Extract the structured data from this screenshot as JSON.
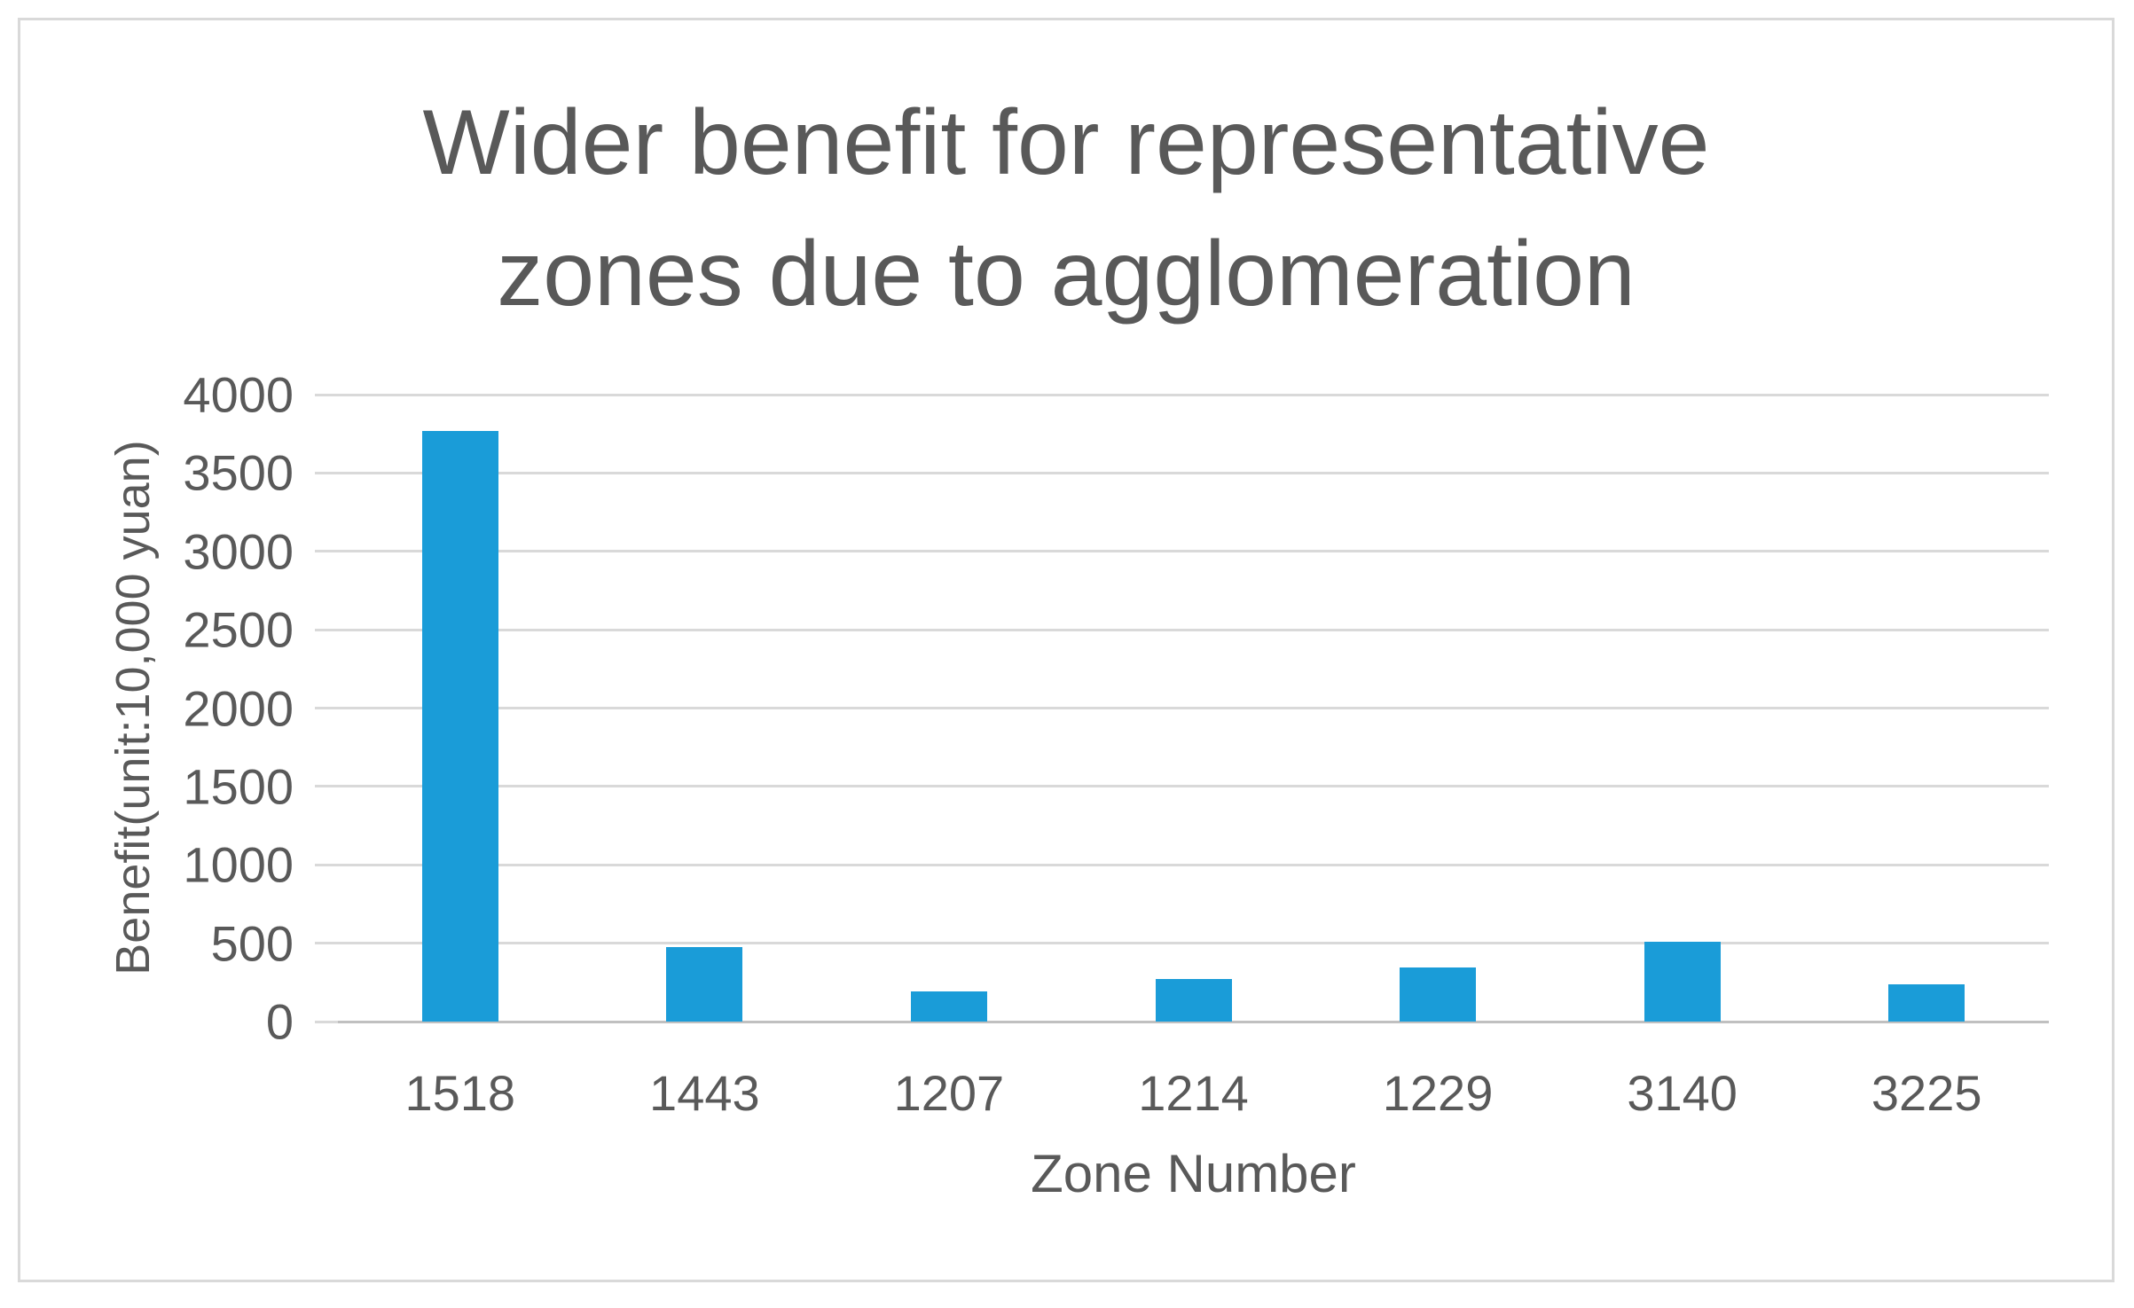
{
  "chart_data": {
    "type": "bar",
    "title": "Wider benefit for representative zones due to agglomeration",
    "title_lines": [
      "Wider benefit for representative",
      "zones due to agglomeration"
    ],
    "categories": [
      "1518",
      "1443",
      "1207",
      "1214",
      "1229",
      "3140",
      "3225"
    ],
    "values": [
      3770,
      475,
      195,
      270,
      345,
      510,
      235
    ],
    "xlabel": "Zone Number",
    "ylabel": "Benefit(unit:10,000 yuan)",
    "ylim": [
      0,
      4000
    ],
    "yticks": [
      0,
      500,
      1000,
      1500,
      2000,
      2500,
      3000,
      3500,
      4000
    ],
    "grid": true,
    "legend": "none",
    "colors": {
      "bar": "#1a9cd8",
      "gridline": "#d9d9d9",
      "zero_axis_line": "#c0c0c0",
      "text": "#595959",
      "frame_border": "#d9d9d9",
      "background": "#ffffff"
    }
  }
}
